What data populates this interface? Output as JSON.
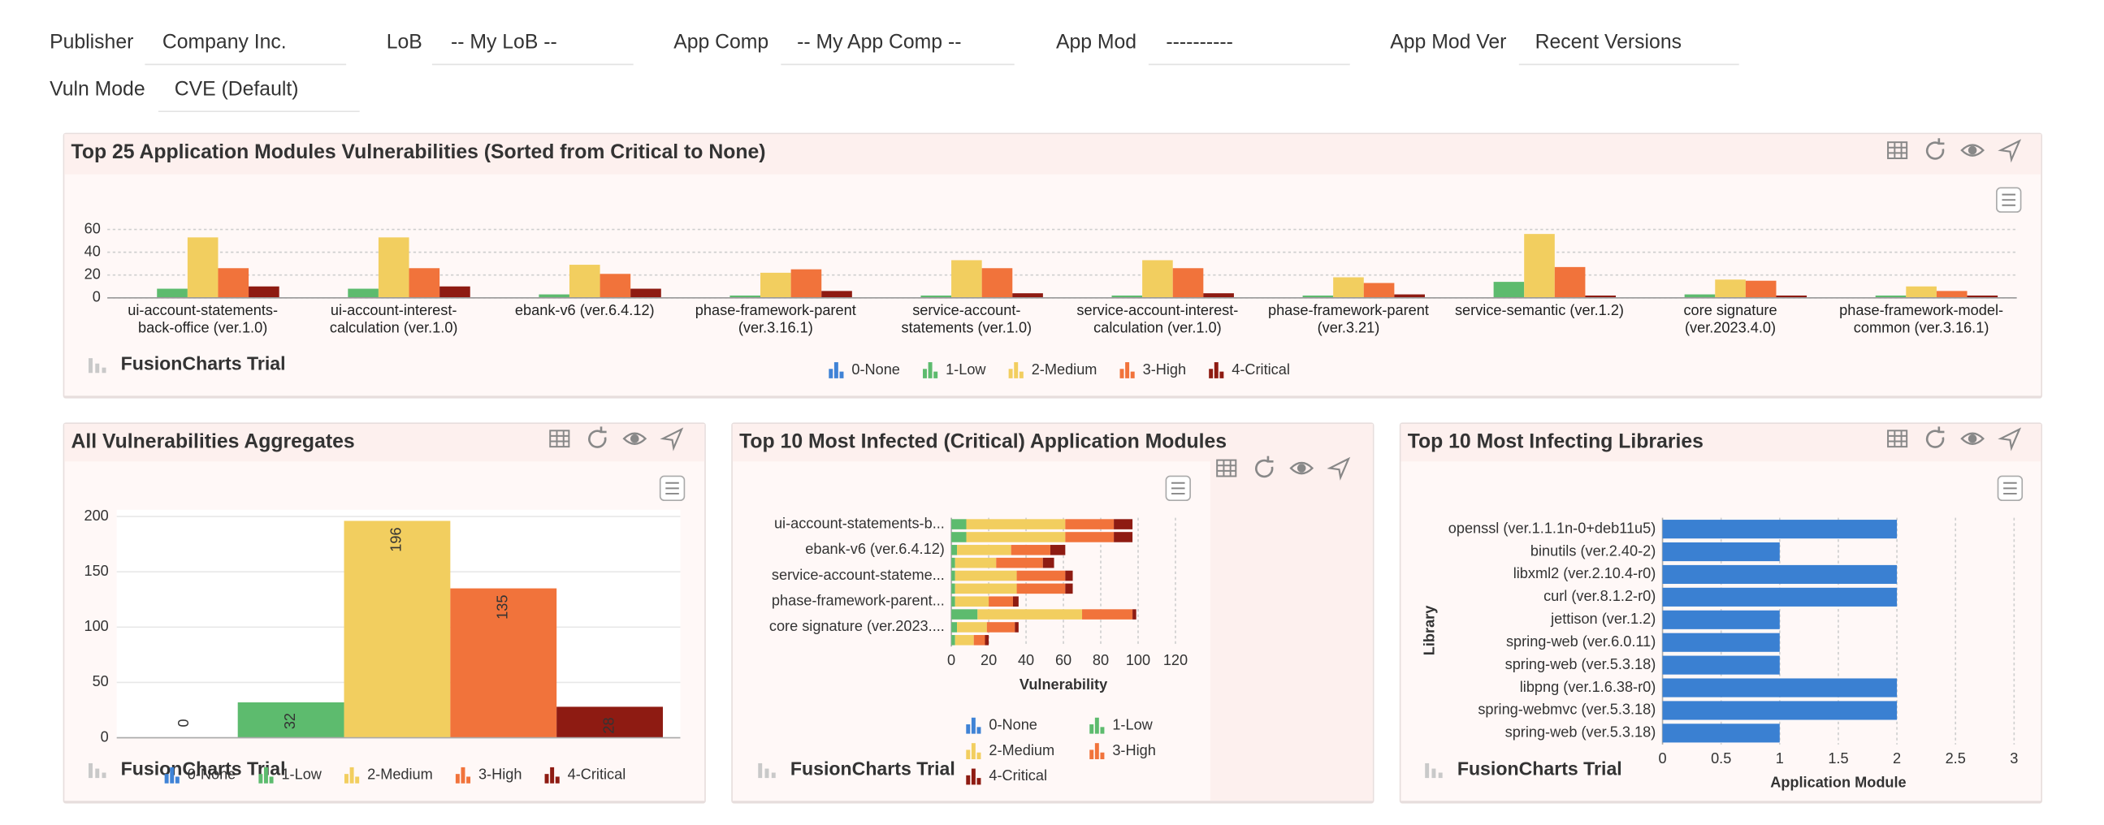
{
  "filters": [
    {
      "label": "Publisher",
      "value": "Company Inc."
    },
    {
      "label": "LoB",
      "value": "-- My LoB --"
    },
    {
      "label": "App Comp",
      "value": "-- My App Comp --"
    },
    {
      "label": "App Mod",
      "value": "----------"
    },
    {
      "label": "App Mod Ver",
      "value": "Recent Versions"
    },
    {
      "label": "Vuln Mode",
      "value": "CVE (Default)"
    }
  ],
  "chart_data": [
    {
      "type": "grouped_bar",
      "title": "Top 25 Application Modules Vulnerabilities (Sorted from Critical to None)",
      "categories": [
        "ui-account-statements-back-office (ver.1.0)",
        "ui-account-interest-calculation (ver.1.0)",
        "ebank-v6 (ver.6.4.12)",
        "phase-framework-parent (ver.3.16.1)",
        "service-account-statements (ver.1.0)",
        "service-account-interest-calculation (ver.1.0)",
        "phase-framework-parent (ver.3.21)",
        "service-semantic (ver.1.2)",
        "core signature (ver.2023.4.0)",
        "phase-framework-model-common (ver.3.16.1)"
      ],
      "series": [
        {
          "name": "0-None",
          "color": "#3f83d6",
          "values": [
            0,
            0,
            0,
            0,
            0,
            0,
            0,
            0,
            0,
            0
          ]
        },
        {
          "name": "1-Low",
          "color": "#5dbb6e",
          "values": [
            8,
            8,
            3,
            2,
            2,
            2,
            2,
            14,
            3,
            2
          ]
        },
        {
          "name": "2-Medium",
          "color": "#f2ce5f",
          "values": [
            53,
            53,
            29,
            22,
            33,
            33,
            18,
            56,
            16,
            10
          ]
        },
        {
          "name": "3-High",
          "color": "#f1733b",
          "values": [
            26,
            26,
            21,
            25,
            26,
            26,
            13,
            27,
            15,
            6
          ]
        },
        {
          "name": "4-Critical",
          "color": "#8e1b12",
          "values": [
            10,
            10,
            8,
            6,
            4,
            4,
            3,
            2,
            2,
            2
          ]
        }
      ],
      "ylim": [
        0,
        60
      ],
      "yticks": [
        0,
        20,
        40,
        60
      ],
      "grid": true,
      "legend": "bottom",
      "watermark": "FusionCharts Trial"
    },
    {
      "type": "bar",
      "title": "All Vulnerabilities Aggregates",
      "categories": [
        "0-None",
        "1-Low",
        "2-Medium",
        "3-High",
        "4-Critical"
      ],
      "values": [
        0,
        32,
        196,
        135,
        28
      ],
      "colors": [
        "#3f83d6",
        "#5dbb6e",
        "#f2ce5f",
        "#f1733b",
        "#8e1b12"
      ],
      "ylim": [
        0,
        200
      ],
      "yticks": [
        0,
        50,
        100,
        150,
        200
      ],
      "grid": true,
      "legend": "bottom",
      "watermark": "FusionCharts Trial"
    },
    {
      "type": "stacked_hbar",
      "title": "Top 10 Most Infected (Critical) Application Modules",
      "categories": [
        "ui-account-statements-b...",
        null,
        "ebank-v6 (ver.6.4.12)",
        null,
        "service-account-stateme...",
        null,
        "phase-framework-parent...",
        null,
        "core signature (ver.2023....",
        null
      ],
      "series": [
        {
          "name": "0-None",
          "color": "#3f83d6",
          "values": [
            0,
            0,
            0,
            0,
            0,
            0,
            0,
            0,
            0,
            0
          ]
        },
        {
          "name": "1-Low",
          "color": "#5dbb6e",
          "values": [
            8,
            8,
            3,
            2,
            2,
            2,
            2,
            14,
            3,
            2
          ]
        },
        {
          "name": "2-Medium",
          "color": "#f2ce5f",
          "values": [
            53,
            53,
            29,
            22,
            33,
            33,
            18,
            56,
            16,
            10
          ]
        },
        {
          "name": "3-High",
          "color": "#f1733b",
          "values": [
            26,
            26,
            21,
            25,
            26,
            26,
            13,
            27,
            15,
            6
          ]
        },
        {
          "name": "4-Critical",
          "color": "#8e1b12",
          "values": [
            10,
            10,
            8,
            6,
            4,
            4,
            3,
            2,
            2,
            2
          ]
        }
      ],
      "xlim": [
        0,
        120
      ],
      "xticks": [
        0,
        20,
        40,
        60,
        80,
        100,
        120
      ],
      "xlabel": "Vulnerability",
      "grid": true,
      "legend": "bottom",
      "watermark": "FusionCharts Trial"
    },
    {
      "type": "hbar",
      "title": "Top 10 Most Infecting Libraries",
      "categories": [
        "openssl (ver.1.1.1n-0+deb11u5)",
        "binutils (ver.2.40-2)",
        "libxml2 (ver.2.10.4-r0)",
        "curl (ver.8.1.2-r0)",
        "jettison (ver.1.2)",
        "spring-web (ver.6.0.11)",
        "spring-web (ver.5.3.18)",
        "libpng (ver.1.6.38-r0)",
        "spring-webmvc (ver.5.3.18)",
        "spring-web (ver.5.3.18)"
      ],
      "values": [
        2,
        1,
        2,
        2,
        1,
        1,
        1,
        2,
        2,
        1
      ],
      "color": "#3a80d2",
      "xlim": [
        0,
        3
      ],
      "xticks": [
        0,
        0.5,
        1,
        1.5,
        2,
        2.5,
        3
      ],
      "xlabel": "Application Module",
      "ylabel": "Library",
      "grid": true,
      "watermark": "FusionCharts Trial"
    }
  ]
}
